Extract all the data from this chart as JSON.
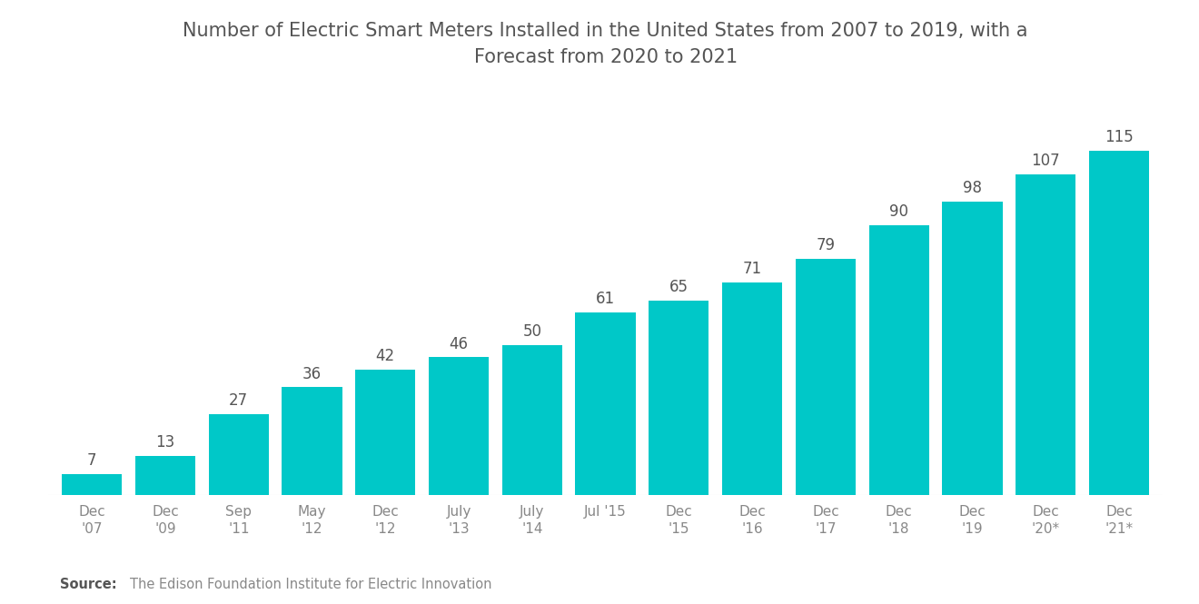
{
  "title": "Number of Electric Smart Meters Installed in the United States from 2007 to 2019, with a\nForecast from 2020 to 2021",
  "categories": [
    "Dec\n'07",
    "Dec\n'09",
    "Sep\n'11",
    "May\n'12",
    "Dec\n'12",
    "July\n'13",
    "July\n'14",
    "Jul '15",
    "Dec\n'15",
    "Dec\n'16",
    "Dec\n'17",
    "Dec\n'18",
    "Dec\n'19",
    "Dec\n'20*",
    "Dec\n'21*"
  ],
  "values": [
    7,
    13,
    27,
    36,
    42,
    46,
    50,
    61,
    65,
    71,
    79,
    90,
    98,
    107,
    115
  ],
  "bar_color": "#00C8C8",
  "background_color": "#ffffff",
  "title_color": "#555555",
  "label_color": "#555555",
  "tick_color": "#888888",
  "source_bold": "Source:",
  "source_text": "  The Edison Foundation Institute for Electric Innovation",
  "ylim": [
    0,
    135
  ],
  "bar_width": 0.82
}
